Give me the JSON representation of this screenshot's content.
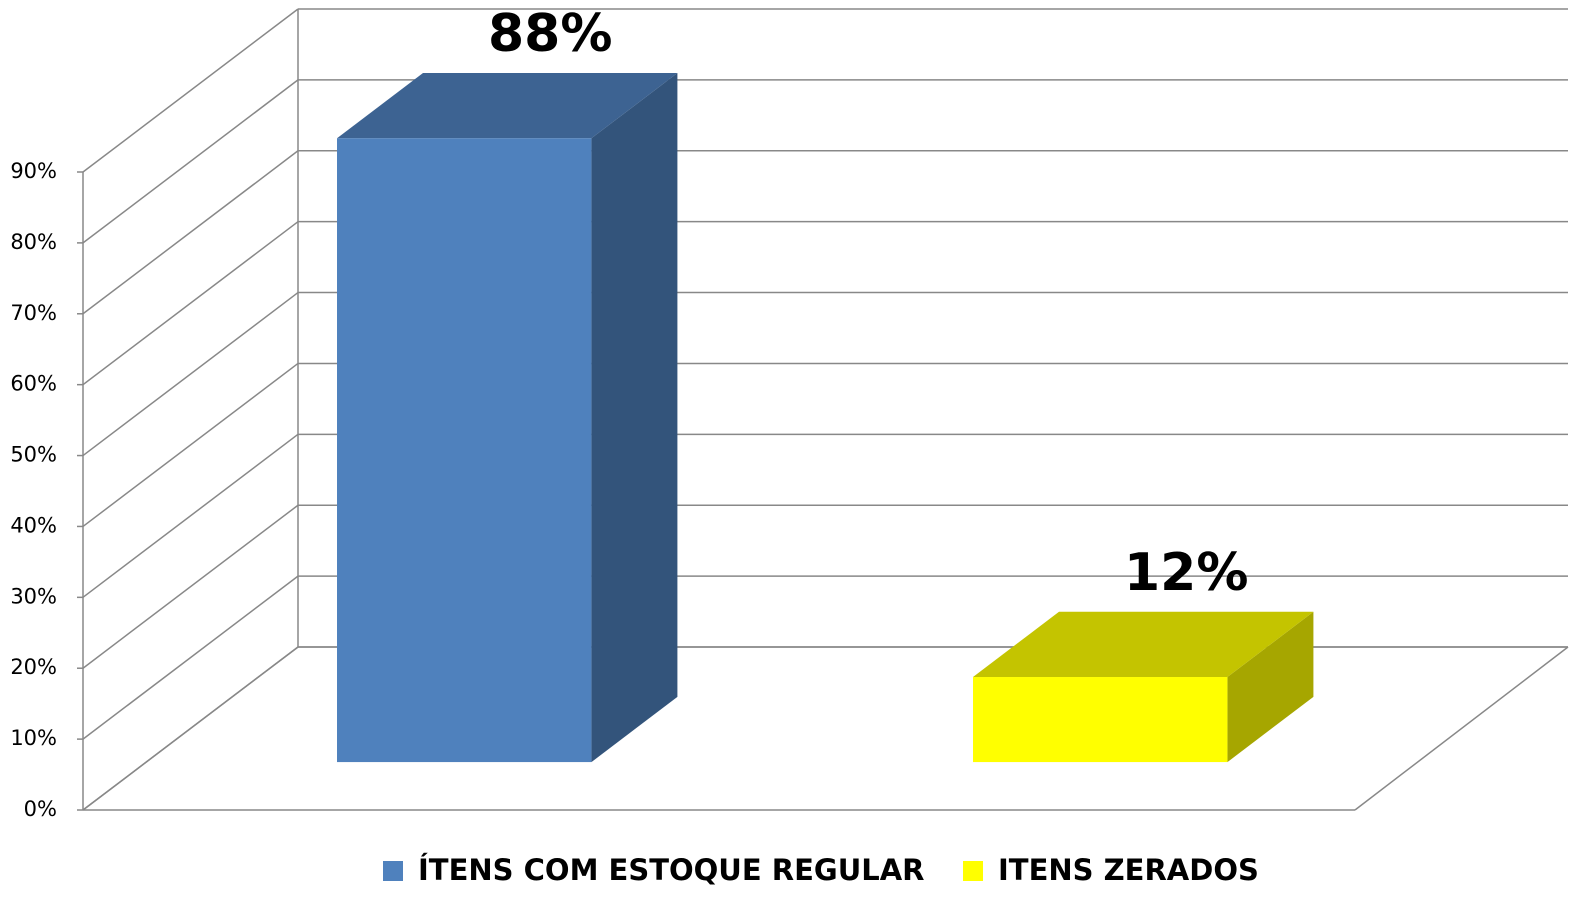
{
  "chart_data": {
    "type": "bar3d",
    "series": [
      {
        "name": "ÍTENS COM ESTOQUE REGULAR",
        "color": "#4f81bd",
        "values": [
          88
        ],
        "value_labels": [
          "88%"
        ]
      },
      {
        "name": "ITENS ZERADOS",
        "color": "#ffff00",
        "values": [
          12
        ],
        "value_labels": [
          "12%"
        ]
      }
    ],
    "ylim": [
      0,
      90
    ],
    "yticks": [
      {
        "value": 0,
        "label": "0%"
      },
      {
        "value": 10,
        "label": "10%"
      },
      {
        "value": 20,
        "label": "20%"
      },
      {
        "value": 30,
        "label": "30%"
      },
      {
        "value": 40,
        "label": "40%"
      },
      {
        "value": 50,
        "label": "50%"
      },
      {
        "value": 60,
        "label": "60%"
      },
      {
        "value": 70,
        "label": "70%"
      },
      {
        "value": 80,
        "label": "80%"
      },
      {
        "value": 90,
        "label": "90%"
      }
    ],
    "grid": true,
    "legend": "bottom"
  }
}
